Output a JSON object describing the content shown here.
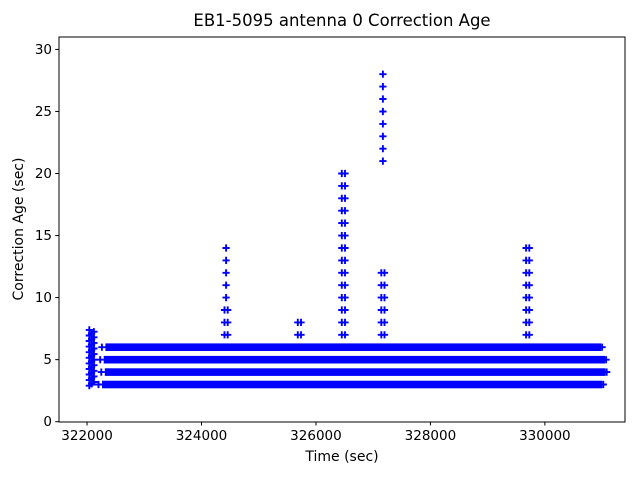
{
  "figure": {
    "title": "EB1-5095 antenna 0 Correction Age",
    "xlabel": "Time (sec)",
    "ylabel": "Correction Age (sec)"
  },
  "chart_data": {
    "type": "scatter",
    "title": "EB1-5095 antenna 0 Correction Age",
    "xlabel": "Time (sec)",
    "ylabel": "Correction Age (sec)",
    "marker": "plus",
    "marker_color": "#0000ff",
    "background_color": "#ffffff",
    "axis_color": "#000000",
    "grid": false,
    "legend": null,
    "xlim": [
      321510,
      331400
    ],
    "ylim": [
      0,
      31
    ],
    "xticks": [
      322000,
      324000,
      326000,
      328000,
      330000
    ],
    "yticks": [
      0,
      5,
      10,
      15,
      20,
      25,
      30
    ],
    "bands": [
      {
        "y": 6,
        "x_start": 322260,
        "x_end": 331000
      },
      {
        "y": 5,
        "x_start": 322230,
        "x_end": 331070
      },
      {
        "y": 4,
        "x_start": 322250,
        "x_end": 331080
      },
      {
        "y": 3,
        "x_start": 322200,
        "x_end": 331020
      }
    ],
    "start_cluster": {
      "x": 322080,
      "y_min": 2.9,
      "y_max": 7.5,
      "y_step": 0.15,
      "x_jitter": 40
    },
    "spikes": [
      {
        "x": 324430,
        "y_wide": [
          7,
          8,
          9
        ],
        "y_single": [
          10,
          11,
          12,
          13,
          14
        ]
      },
      {
        "x": 325710,
        "y_wide": [
          7,
          8
        ],
        "y_single": []
      },
      {
        "x": 326480,
        "y_wide": [
          7,
          8,
          9,
          10,
          11,
          12,
          13,
          14,
          15,
          16,
          17,
          18,
          19,
          20
        ],
        "y_single": []
      },
      {
        "x": 327170,
        "y_wide": [
          7,
          8,
          9,
          10,
          11,
          12
        ],
        "y_single": [
          21,
          22,
          23,
          24,
          25,
          26,
          27,
          28
        ]
      },
      {
        "x": 329700,
        "y_wide": [
          7,
          8,
          9,
          10,
          11,
          12,
          13,
          14
        ],
        "y_single": []
      }
    ]
  }
}
